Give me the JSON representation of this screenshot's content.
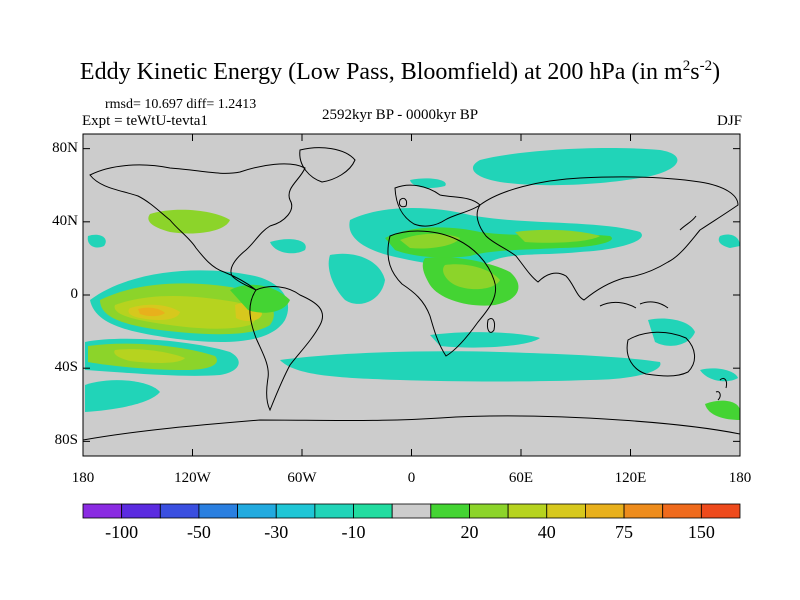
{
  "title": {
    "main": "Eddy Kinetic Energy (Low Pass, Bloomfield) at 200 hPa (in m",
    "sup1": "2",
    "mid": "s",
    "sup2": "-2",
    "end": ")"
  },
  "stats": {
    "rmsd_line": "rmsd= 10.697 diff= 1.2413"
  },
  "experiment": "Expt = teWtU-tevta1",
  "period": "2592kyr BP - 0000kyr BP",
  "season": "DJF",
  "axes": {
    "y_ticks": [
      {
        "label": "80N",
        "lat": 80
      },
      {
        "label": "40N",
        "lat": 40
      },
      {
        "label": "0",
        "lat": 0
      },
      {
        "label": "40S",
        "lat": -40
      },
      {
        "label": "80S",
        "lat": -80
      }
    ],
    "x_ticks": [
      {
        "label": "180",
        "lon": -180
      },
      {
        "label": "120W",
        "lon": -120
      },
      {
        "label": "60W",
        "lon": -60
      },
      {
        "label": "0",
        "lon": 0
      },
      {
        "label": "60E",
        "lon": 60
      },
      {
        "label": "120E",
        "lon": 120
      },
      {
        "label": "180",
        "lon": 180
      }
    ]
  },
  "colorbar": {
    "colors": [
      "#8a2be2",
      "#5b2be0",
      "#3a4fe0",
      "#2a7fe0",
      "#22aadf",
      "#1fc6d6",
      "#21d4b8",
      "#22dca0",
      "#cccccc",
      "#44d433",
      "#8cd42a",
      "#b6d31f",
      "#d7c81d",
      "#e8b01c",
      "#ee8c1c",
      "#ef6a1c",
      "#ee4a1c"
    ],
    "labels": [
      {
        "text": "-100",
        "after": 1
      },
      {
        "text": "-50",
        "after": 3
      },
      {
        "text": "-30",
        "after": 5
      },
      {
        "text": "-10",
        "after": 7
      },
      {
        "text": "20",
        "after": 10
      },
      {
        "text": "40",
        "after": 12
      },
      {
        "text": "75",
        "after": 14
      },
      {
        "text": "150",
        "after": 16
      }
    ]
  },
  "field_colors": {
    "background": "#cccccc",
    "cyan": "#21d4b8",
    "lightgreen": "#44d433",
    "green": "#8cd42a",
    "yellowgreen": "#b6d31f",
    "yellow": "#d7c81d",
    "orange": "#e8b01c"
  }
}
